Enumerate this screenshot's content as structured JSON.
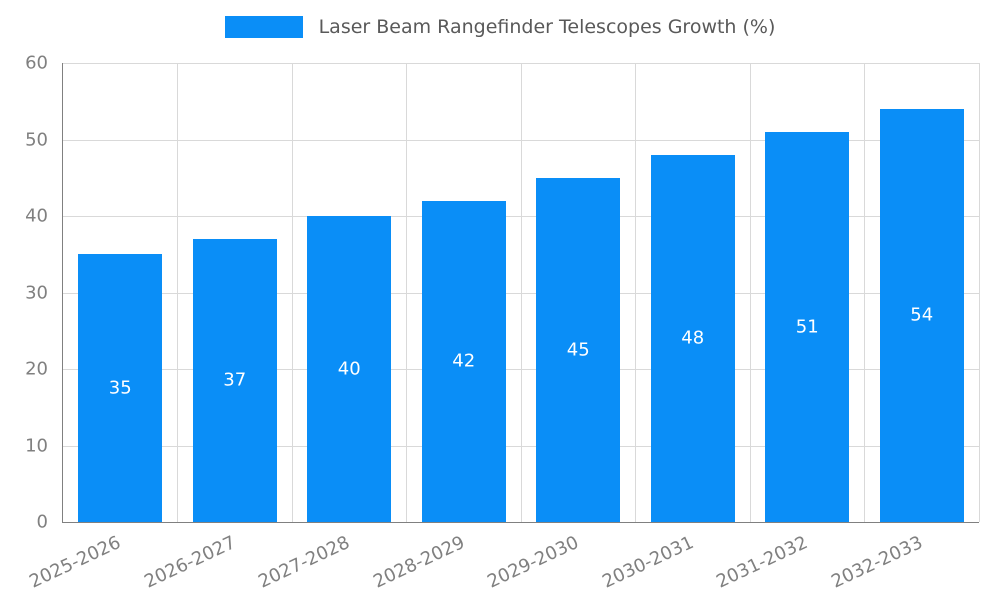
{
  "legend": {
    "label": "Laser Beam Rangefinder Telescopes Growth (%)",
    "swatch_color": "#0a8ef7"
  },
  "chart_data": {
    "type": "bar",
    "title": "Laser Beam Rangefinder Telescopes Growth (%)",
    "categories": [
      "2025-2026",
      "2026-2027",
      "2027-2028",
      "2028-2029",
      "2029-2030",
      "2030-2031",
      "2031-2032",
      "2032-2033"
    ],
    "values": [
      35,
      37,
      40,
      42,
      45,
      48,
      51,
      54
    ],
    "xlabel": "",
    "ylabel": "",
    "ylim": [
      0,
      60
    ],
    "yticks": [
      0,
      10,
      20,
      30,
      40,
      50,
      60
    ],
    "bar_color": "#0a8ef7",
    "grid": true,
    "gridline_color": "#d9d9d9",
    "axis_color": "#808080",
    "tick_label_color": "#808080",
    "value_label_color": "#ffffff",
    "legend_position": "top-center",
    "value_labels": "inside-middle",
    "x_tick_rotation_deg": 25
  }
}
